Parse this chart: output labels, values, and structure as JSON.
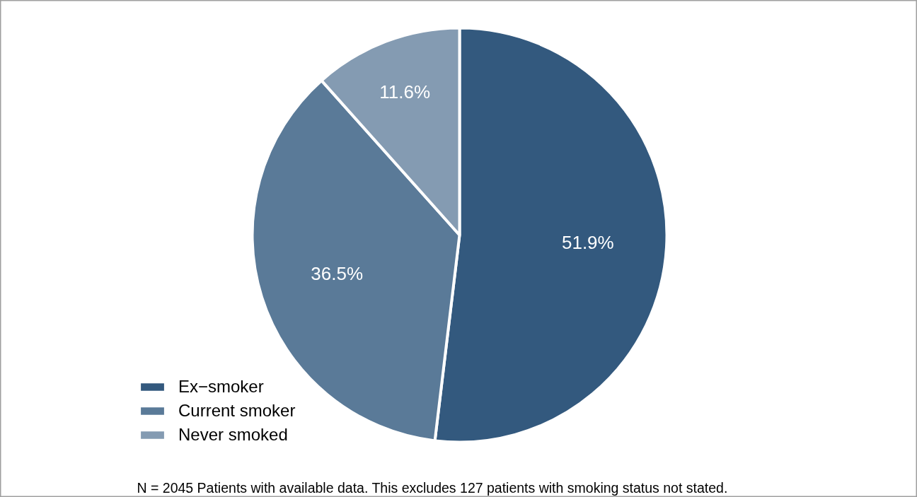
{
  "chart_data": {
    "type": "pie",
    "categories": [
      "Ex−smoker",
      "Current smoker",
      "Never smoked"
    ],
    "values": [
      51.9,
      36.5,
      11.6
    ],
    "colors": [
      "#33597e",
      "#5a7a98",
      "#849bb2"
    ],
    "value_labels": [
      "51.9%",
      "36.5%",
      "11.6%"
    ],
    "legend": "bottom left",
    "annotations": [
      "N = 2045 Patients with available data. This excludes 127 patients with smoking status not stated."
    ]
  }
}
